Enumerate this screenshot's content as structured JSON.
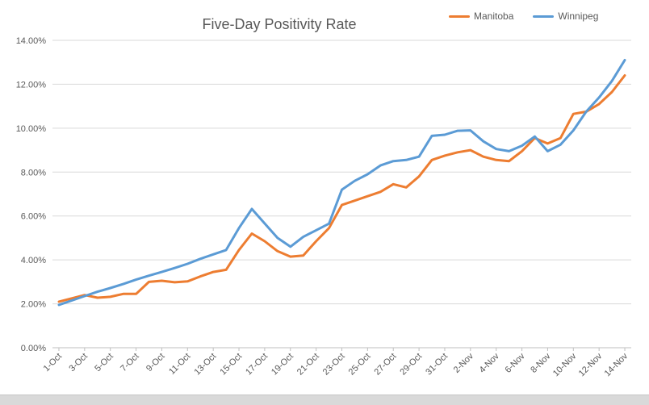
{
  "chart": {
    "title": "Five-Day Positivity Rate",
    "legend_items": [
      {
        "label": "Manitoba",
        "color": "#ED7D31"
      },
      {
        "label": "Winnipeg",
        "color": "#5B9BD5"
      }
    ]
  },
  "chart_data": {
    "type": "line",
    "title": "Five-Day Positivity Rate",
    "x": [
      "1-Oct",
      "2-Oct",
      "3-Oct",
      "4-Oct",
      "5-Oct",
      "6-Oct",
      "7-Oct",
      "8-Oct",
      "9-Oct",
      "10-Oct",
      "11-Oct",
      "12-Oct",
      "13-Oct",
      "14-Oct",
      "15-Oct",
      "16-Oct",
      "17-Oct",
      "18-Oct",
      "19-Oct",
      "20-Oct",
      "21-Oct",
      "22-Oct",
      "23-Oct",
      "24-Oct",
      "25-Oct",
      "26-Oct",
      "27-Oct",
      "28-Oct",
      "29-Oct",
      "30-Oct",
      "31-Oct",
      "1-Nov",
      "2-Nov",
      "3-Nov",
      "4-Nov",
      "5-Nov",
      "6-Nov",
      "7-Nov",
      "8-Nov",
      "9-Nov",
      "10-Nov",
      "11-Nov",
      "12-Nov",
      "13-Nov",
      "14-Nov"
    ],
    "series": [
      {
        "name": "Manitoba",
        "color": "#ED7D31",
        "values": [
          2.1,
          2.25,
          2.4,
          2.28,
          2.32,
          2.45,
          2.45,
          3.0,
          3.05,
          2.98,
          3.02,
          3.25,
          3.45,
          3.55,
          4.45,
          5.2,
          4.85,
          4.4,
          4.15,
          4.2,
          4.85,
          5.45,
          6.5,
          6.7,
          6.9,
          7.1,
          7.45,
          7.3,
          7.8,
          8.55,
          8.75,
          8.9,
          9.0,
          8.7,
          8.55,
          8.5,
          8.95,
          9.55,
          9.3,
          9.55,
          10.65,
          10.75,
          11.1,
          11.65,
          12.4
        ]
      },
      {
        "name": "Winnipeg",
        "color": "#5B9BD5",
        "values": [
          1.95,
          2.15,
          2.35,
          2.55,
          2.72,
          2.9,
          3.1,
          3.28,
          3.45,
          3.63,
          3.82,
          4.05,
          4.25,
          4.45,
          5.45,
          6.32,
          5.66,
          5.0,
          4.6,
          5.05,
          5.35,
          5.65,
          7.2,
          7.6,
          7.9,
          8.3,
          8.5,
          8.55,
          8.7,
          9.65,
          9.7,
          9.88,
          9.9,
          9.4,
          9.05,
          8.95,
          9.2,
          9.62,
          8.95,
          9.25,
          9.9,
          10.75,
          11.4,
          12.15,
          13.1
        ]
      }
    ],
    "xlabel": "",
    "ylabel": "",
    "ylim": [
      0,
      14
    ],
    "y_grid_step": 2,
    "grid": true,
    "legend_position": "top-right",
    "x_label_step": 2,
    "y_tick_labels": [
      "0.00%",
      "2.00%",
      "4.00%",
      "6.00%",
      "8.00%",
      "10.00%",
      "12.00%",
      "14.00%"
    ],
    "x_tick_labels": [
      "1-Oct",
      "3-Oct",
      "5-Oct",
      "7-Oct",
      "9-Oct",
      "11-Oct",
      "13-Oct",
      "15-Oct",
      "17-Oct",
      "19-Oct",
      "21-Oct",
      "23-Oct",
      "25-Oct",
      "27-Oct",
      "29-Oct",
      "31-Oct",
      "2-Nov",
      "4-Nov",
      "6-Nov",
      "8-Nov",
      "10-Nov",
      "12-Nov",
      "14-Nov"
    ],
    "styles": {
      "grid_color": "#D9D9D9",
      "axis_color": "#BFBFBF",
      "text_color": "#595959"
    }
  }
}
